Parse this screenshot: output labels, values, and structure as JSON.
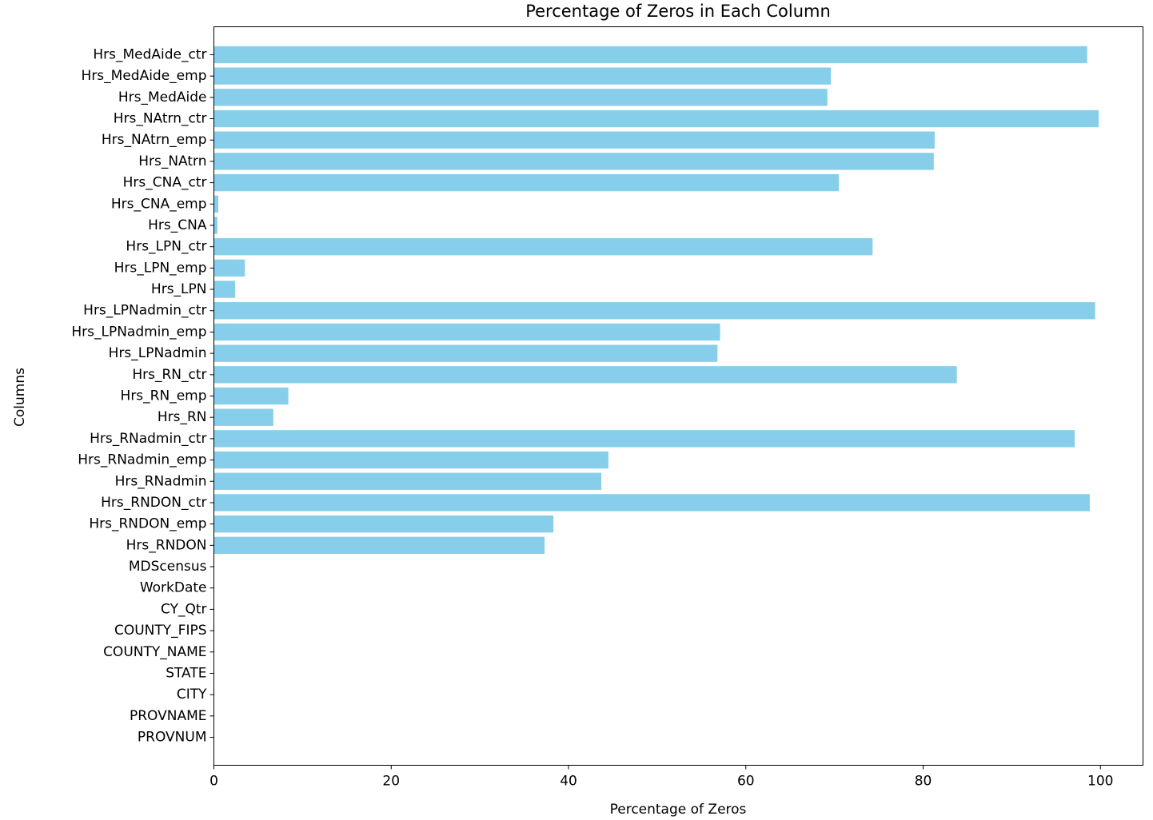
{
  "chart_data": {
    "type": "bar",
    "orientation": "horizontal",
    "title": "Percentage of Zeros in Each Column",
    "xlabel": "Percentage of Zeros",
    "ylabel": "Columns",
    "xlim": [
      0,
      104.8
    ],
    "xticks": [
      0,
      20,
      40,
      60,
      80,
      100
    ],
    "grid": false,
    "bar_color": "#87ceeb",
    "categories": [
      "PROVNUM",
      "PROVNAME",
      "CITY",
      "STATE",
      "COUNTY_NAME",
      "COUNTY_FIPS",
      "CY_Qtr",
      "WorkDate",
      "MDScensus",
      "Hrs_RNDON",
      "Hrs_RNDON_emp",
      "Hrs_RNDON_ctr",
      "Hrs_RNadmin",
      "Hrs_RNadmin_emp",
      "Hrs_RNadmin_ctr",
      "Hrs_RN",
      "Hrs_RN_emp",
      "Hrs_RN_ctr",
      "Hrs_LPNadmin",
      "Hrs_LPNadmin_emp",
      "Hrs_LPNadmin_ctr",
      "Hrs_LPN",
      "Hrs_LPN_emp",
      "Hrs_LPN_ctr",
      "Hrs_CNA",
      "Hrs_CNA_emp",
      "Hrs_CNA_ctr",
      "Hrs_NAtrn",
      "Hrs_NAtrn_emp",
      "Hrs_NAtrn_ctr",
      "Hrs_MedAide",
      "Hrs_MedAide_emp",
      "Hrs_MedAide_ctr"
    ],
    "values": [
      0,
      0,
      0,
      0,
      0,
      0,
      0,
      0,
      0,
      37.3,
      38.3,
      98.8,
      43.7,
      44.5,
      97.1,
      6.7,
      8.4,
      83.8,
      56.8,
      57.1,
      99.4,
      2.4,
      3.5,
      74.3,
      0.4,
      0.5,
      70.5,
      81.2,
      81.3,
      99.8,
      69.2,
      69.6,
      98.5
    ]
  }
}
